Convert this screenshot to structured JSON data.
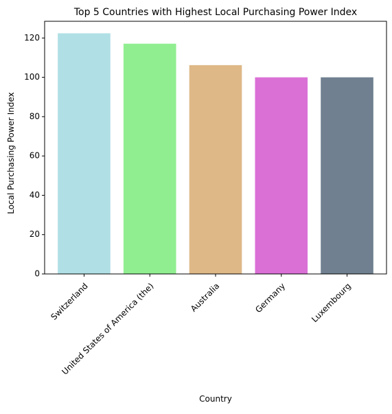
{
  "chart_data": {
    "type": "bar",
    "title": "Top 5 Countries with Highest Local Purchasing Power Index",
    "xlabel": "Country",
    "ylabel": "Local Purchasing Power Index",
    "categories": [
      "Switzerland",
      "United States of America (the)",
      "Australia",
      "Germany",
      "Luxembourg"
    ],
    "values": [
      122.4,
      117.1,
      106.2,
      100.0,
      100.0
    ],
    "colors": [
      "#b0e0e6",
      "#90ee90",
      "#deb887",
      "#da70d6",
      "#708090"
    ],
    "ylim": [
      0,
      128.5
    ],
    "yticks": [
      0,
      20,
      40,
      60,
      80,
      100,
      120
    ],
    "grid": false,
    "legend": "none"
  }
}
